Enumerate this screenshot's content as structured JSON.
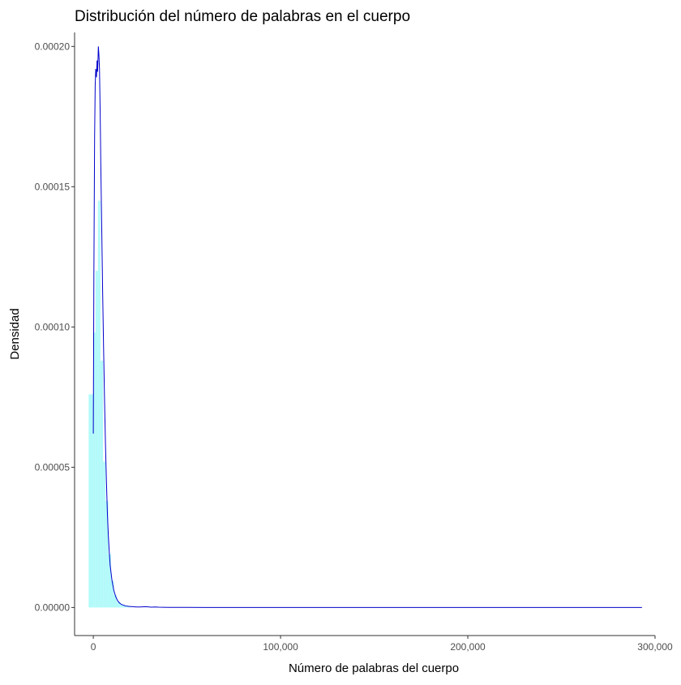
{
  "chart_data": {
    "type": "area",
    "title": "Distribución del número de palabras en el cuerpo",
    "xlabel": "Número de palabras del cuerpo",
    "ylabel": "Densidad",
    "xlim": [
      -10000,
      300000
    ],
    "ylim": [
      -1e-05,
      0.000205
    ],
    "x_ticks": [
      0,
      100000,
      200000,
      300000
    ],
    "x_tick_labels": [
      "0",
      "100,000",
      "200,000",
      "300,000"
    ],
    "y_ticks": [
      0,
      5e-05,
      0.0001,
      0.00015,
      0.0002
    ],
    "y_tick_labels": [
      "0.00000",
      "0.00005",
      "0.00010",
      "0.00015",
      "0.00020"
    ],
    "grid": false,
    "legend": "none",
    "colors": {
      "histogram": "#b3fafa",
      "density": "#0000cc",
      "axis": "#333333"
    },
    "histogram": {
      "bins": [
        {
          "x0": -2500,
          "x1": 0,
          "value": 7.6e-05
        },
        {
          "x0": 0,
          "x1": 1200,
          "value": 9.8e-05
        },
        {
          "x0": 1200,
          "x1": 2500,
          "value": 0.00012
        },
        {
          "x0": 2500,
          "x1": 3800,
          "value": 0.000145
        },
        {
          "x0": 3800,
          "x1": 5200,
          "value": 8.8e-05
        },
        {
          "x0": 5200,
          "x1": 6500,
          "value": 5.2e-05
        },
        {
          "x0": 6500,
          "x1": 8000,
          "value": 3.8e-05
        },
        {
          "x0": 8000,
          "x1": 9500,
          "value": 1.9e-05
        },
        {
          "x0": 9500,
          "x1": 11000,
          "value": 9.5e-06
        },
        {
          "x0": 11000,
          "x1": 12500,
          "value": 4.5e-06
        },
        {
          "x0": 12500,
          "x1": 14500,
          "value": 2e-06
        },
        {
          "x0": 14500,
          "x1": 17000,
          "value": 1e-06
        },
        {
          "x0": 17000,
          "x1": 20000,
          "value": 4e-07
        }
      ]
    },
    "density_curve": {
      "x": [
        0,
        300,
        700,
        1000,
        1300,
        1700,
        2000,
        2300,
        2700,
        3000,
        3300,
        3700,
        4000,
        4500,
        5000,
        5500,
        6000,
        6500,
        7000,
        7500,
        8000,
        8500,
        9000,
        10000,
        11000,
        12000,
        13000,
        14000,
        15000,
        17000,
        19000,
        21000,
        23000,
        25000,
        28000,
        31000,
        33000,
        35000,
        40000,
        50000,
        70000,
        100000,
        150000,
        200000,
        250000,
        293000
      ],
      "y": [
        6.2e-05,
        0.000118,
        0.000168,
        0.000186,
        0.000192,
        0.000189,
        0.000195,
        0.000191,
        0.0002,
        0.000197,
        0.000192,
        0.000175,
        0.000158,
        0.000135,
        0.000112,
        9.2e-05,
        7.4e-05,
        5.8e-05,
        4.5e-05,
        3.4e-05,
        2.6e-05,
        2e-05,
        1.5e-05,
        9.5e-06,
        6e-06,
        3.8e-06,
        2.4e-06,
        1.6e-06,
        1.1e-06,
        6e-07,
        4e-07,
        3e-07,
        2e-07,
        2e-07,
        3e-07,
        1e-07,
        2e-07,
        1e-07,
        5e-08,
        3e-08,
        1e-08,
        0.0,
        0.0,
        0.0,
        0.0,
        0.0
      ]
    }
  }
}
